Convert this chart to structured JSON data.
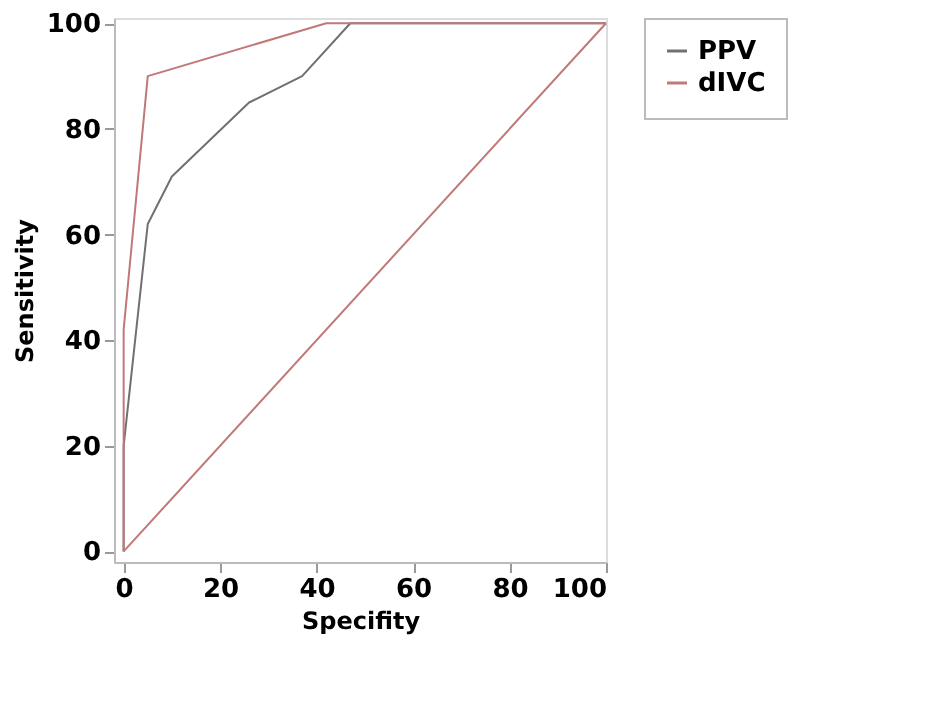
{
  "chart_data": {
    "type": "line",
    "xlabel": "Specifity",
    "ylabel": "Sensitivity",
    "xlim": [
      -2,
      100
    ],
    "ylim": [
      -2,
      101
    ],
    "xticks": [
      0,
      20,
      40,
      60,
      80,
      100
    ],
    "yticks": [
      0,
      20,
      40,
      60,
      80,
      100
    ],
    "grid": false,
    "legend": "right",
    "marker": "none",
    "line_style": "solid",
    "series": [
      {
        "name": "PPV",
        "color": "#707070",
        "x": [
          0,
          0,
          5,
          10,
          26,
          37,
          47,
          100
        ],
        "values": [
          0,
          20,
          62,
          71,
          85,
          90,
          100,
          100
        ]
      },
      {
        "name": "dIVC",
        "color": "#c07878",
        "x": [
          0,
          0,
          5,
          42,
          100
        ],
        "values": [
          0,
          42,
          90,
          100,
          100
        ]
      },
      {
        "color": "#c07878",
        "x": [
          0,
          100
        ],
        "values": [
          0,
          100
        ]
      }
    ]
  }
}
